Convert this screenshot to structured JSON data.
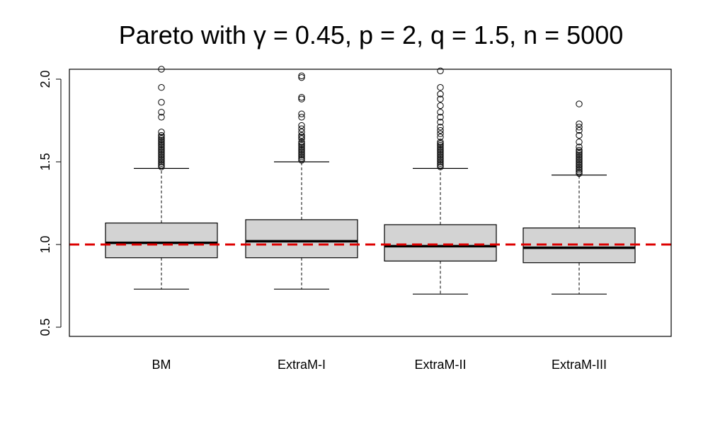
{
  "chart_data": {
    "type": "box",
    "title": "Pareto with γ = 0.45, p = 2, q = 1.5, n = 5000",
    "xlabel": "",
    "ylabel": "",
    "ylim": [
      0.45,
      2.06
    ],
    "yticks": [
      "0.5",
      "1.0",
      "1.5",
      "2.0"
    ],
    "categories": [
      "BM",
      "ExtraM-I",
      "ExtraM-II",
      "ExtraM-III"
    ],
    "reference_line": {
      "y": 1.0,
      "color": "#dd0000",
      "style": "dashed"
    },
    "box_fill": "#d3d3d3",
    "boxes": [
      {
        "category": "BM",
        "lower_whisker": 0.73,
        "q1": 0.92,
        "median": 1.01,
        "q3": 1.13,
        "upper_whisker": 1.46,
        "outliers": [
          1.47,
          1.48,
          1.49,
          1.5,
          1.51,
          1.52,
          1.53,
          1.54,
          1.55,
          1.56,
          1.57,
          1.58,
          1.59,
          1.6,
          1.61,
          1.62,
          1.63,
          1.64,
          1.65,
          1.66,
          1.68,
          1.77,
          1.8,
          1.86,
          1.95,
          2.06
        ]
      },
      {
        "category": "ExtraM-I",
        "lower_whisker": 0.73,
        "q1": 0.92,
        "median": 1.02,
        "q3": 1.15,
        "upper_whisker": 1.5,
        "outliers": [
          1.51,
          1.52,
          1.53,
          1.54,
          1.55,
          1.56,
          1.57,
          1.58,
          1.59,
          1.6,
          1.61,
          1.62,
          1.64,
          1.65,
          1.66,
          1.68,
          1.7,
          1.72,
          1.77,
          1.79,
          1.88,
          1.89,
          2.01,
          2.02
        ]
      },
      {
        "category": "ExtraM-II",
        "lower_whisker": 0.7,
        "q1": 0.9,
        "median": 0.99,
        "q3": 1.12,
        "upper_whisker": 1.46,
        "outliers": [
          1.47,
          1.48,
          1.49,
          1.5,
          1.51,
          1.52,
          1.53,
          1.54,
          1.55,
          1.56,
          1.57,
          1.58,
          1.59,
          1.6,
          1.61,
          1.62,
          1.65,
          1.67,
          1.69,
          1.71,
          1.74,
          1.77,
          1.8,
          1.84,
          1.88,
          1.91,
          1.95,
          2.05
        ]
      },
      {
        "category": "ExtraM-III",
        "lower_whisker": 0.7,
        "q1": 0.89,
        "median": 0.98,
        "q3": 1.1,
        "upper_whisker": 1.42,
        "outliers": [
          1.43,
          1.44,
          1.45,
          1.46,
          1.47,
          1.48,
          1.49,
          1.5,
          1.51,
          1.52,
          1.53,
          1.54,
          1.55,
          1.56,
          1.57,
          1.59,
          1.62,
          1.66,
          1.69,
          1.71,
          1.73,
          1.85
        ]
      }
    ]
  }
}
